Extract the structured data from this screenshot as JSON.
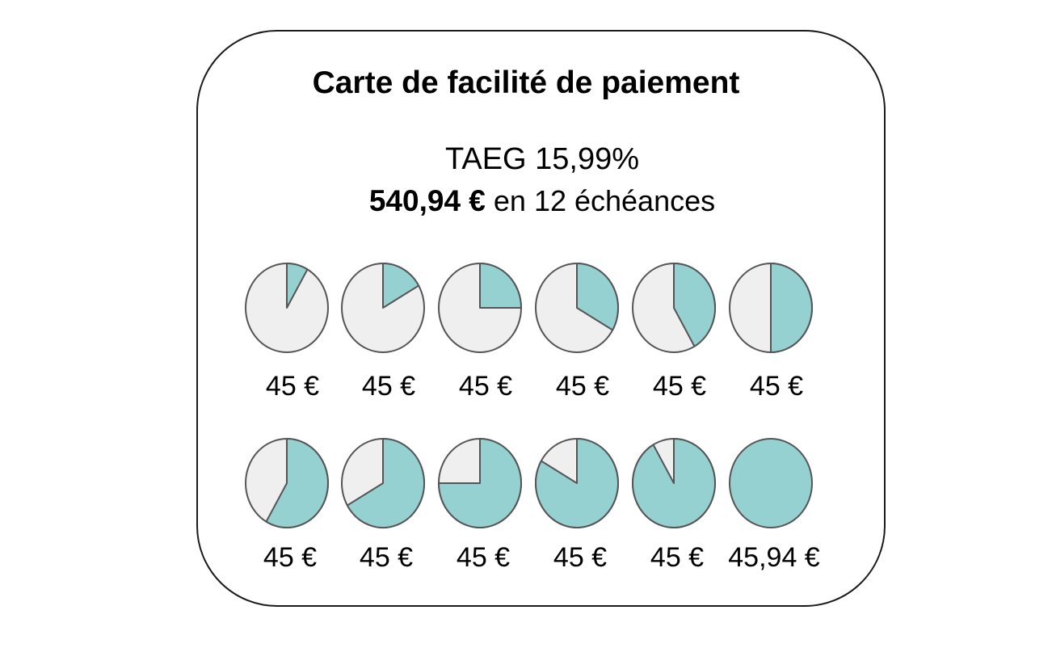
{
  "title": "Carte de facilité de paiement",
  "rate": "TAEG 15,99%",
  "total_amount": "540,94 €",
  "total_suffix": " en 12 échéances",
  "colors": {
    "paid": "#96d1d1",
    "remaining": "#efefef",
    "outline": "#555555"
  },
  "installments": [
    {
      "amount": "45 €",
      "progress": 0.0833
    },
    {
      "amount": "45 €",
      "progress": 0.1667
    },
    {
      "amount": "45 €",
      "progress": 0.25
    },
    {
      "amount": "45 €",
      "progress": 0.3333
    },
    {
      "amount": "45 €",
      "progress": 0.4167
    },
    {
      "amount": "45 €",
      "progress": 0.5
    },
    {
      "amount": "45 €",
      "progress": 0.5833
    },
    {
      "amount": "45 €",
      "progress": 0.6667
    },
    {
      "amount": "45 €",
      "progress": 0.75
    },
    {
      "amount": "45 €",
      "progress": 0.8333
    },
    {
      "amount": "45 €",
      "progress": 0.9167
    },
    {
      "amount": "45,94 €",
      "progress": 1.0
    }
  ]
}
